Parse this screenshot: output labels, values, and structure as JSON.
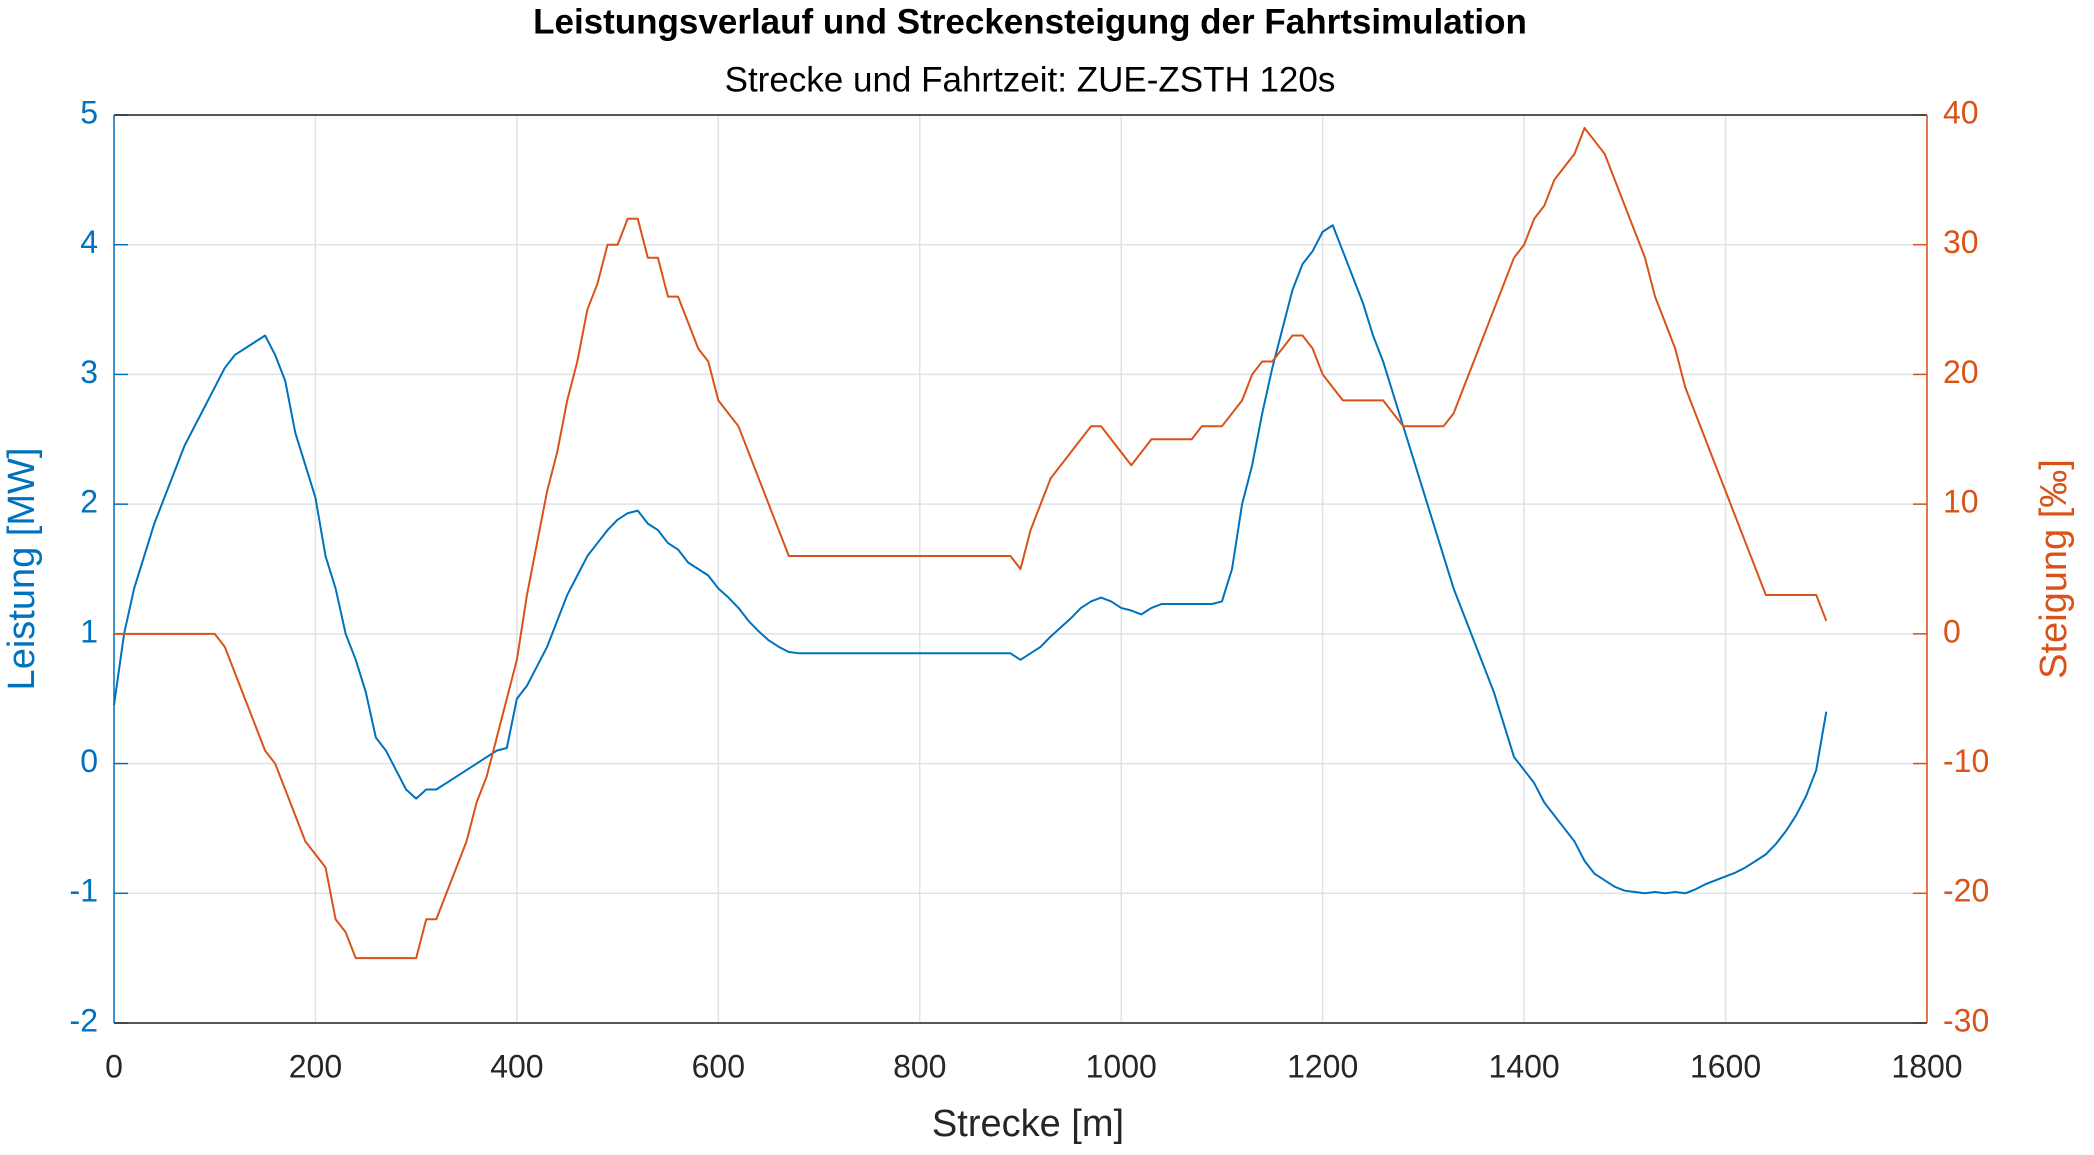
{
  "chart_data": {
    "type": "line",
    "title": "Leistungsverlauf und Streckensteigung der Fahrtsimulation",
    "subtitle": "Strecke und Fahrtzeit: ZUE-ZSTH 120s",
    "x_label": "Strecke [m]",
    "y_label": "Leistung [MW]",
    "y2_label": "Steigung [‰]",
    "x": [
      0,
      10,
      20,
      30,
      40,
      50,
      60,
      70,
      80,
      90,
      100,
      110,
      120,
      130,
      140,
      150,
      160,
      170,
      180,
      190,
      200,
      210,
      220,
      230,
      240,
      250,
      260,
      270,
      280,
      290,
      300,
      310,
      320,
      330,
      340,
      350,
      360,
      370,
      380,
      390,
      400,
      410,
      420,
      430,
      440,
      450,
      460,
      470,
      480,
      490,
      500,
      510,
      520,
      530,
      540,
      550,
      560,
      570,
      580,
      590,
      600,
      610,
      620,
      630,
      640,
      650,
      660,
      670,
      680,
      690,
      700,
      710,
      720,
      730,
      740,
      750,
      760,
      770,
      780,
      790,
      800,
      810,
      820,
      830,
      840,
      850,
      860,
      870,
      880,
      890,
      900,
      910,
      920,
      930,
      940,
      950,
      960,
      970,
      980,
      990,
      1000,
      1010,
      1020,
      1030,
      1040,
      1050,
      1060,
      1070,
      1080,
      1090,
      1100,
      1110,
      1120,
      1130,
      1140,
      1150,
      1160,
      1170,
      1180,
      1190,
      1200,
      1210,
      1220,
      1230,
      1240,
      1250,
      1260,
      1270,
      1280,
      1290,
      1300,
      1310,
      1320,
      1330,
      1340,
      1350,
      1360,
      1370,
      1380,
      1390,
      1400,
      1410,
      1420,
      1430,
      1440,
      1450,
      1460,
      1470,
      1480,
      1490,
      1500,
      1510,
      1520,
      1530,
      1540,
      1550,
      1560,
      1570,
      1580,
      1590,
      1600,
      1610,
      1620,
      1630,
      1640,
      1650,
      1660,
      1670,
      1680,
      1690,
      1700
    ],
    "series": [
      {
        "name": "Leistung",
        "color": "#0072bd",
        "axis": "y",
        "values": [
          0.45,
          1.0,
          1.35,
          1.6,
          1.85,
          2.05,
          2.25,
          2.45,
          2.6,
          2.75,
          2.9,
          3.05,
          3.15,
          3.2,
          3.25,
          3.3,
          3.15,
          2.95,
          2.55,
          2.3,
          2.05,
          1.6,
          1.35,
          1.0,
          0.8,
          0.55,
          0.2,
          0.1,
          -0.05,
          -0.2,
          -0.27,
          -0.2,
          -0.2,
          -0.15,
          -0.1,
          -0.05,
          0.0,
          0.05,
          0.1,
          0.12,
          0.5,
          0.6,
          0.75,
          0.9,
          1.1,
          1.3,
          1.45,
          1.6,
          1.7,
          1.8,
          1.88,
          1.93,
          1.95,
          1.85,
          1.8,
          1.7,
          1.65,
          1.55,
          1.5,
          1.45,
          1.35,
          1.28,
          1.2,
          1.1,
          1.02,
          0.95,
          0.9,
          0.86,
          0.85,
          0.85,
          0.85,
          0.85,
          0.85,
          0.85,
          0.85,
          0.85,
          0.85,
          0.85,
          0.85,
          0.85,
          0.85,
          0.85,
          0.85,
          0.85,
          0.85,
          0.85,
          0.85,
          0.85,
          0.85,
          0.85,
          0.8,
          0.85,
          0.9,
          0.98,
          1.05,
          1.12,
          1.2,
          1.25,
          1.28,
          1.25,
          1.2,
          1.18,
          1.15,
          1.2,
          1.23,
          1.23,
          1.23,
          1.23,
          1.23,
          1.23,
          1.25,
          1.5,
          2.0,
          2.3,
          2.7,
          3.05,
          3.35,
          3.65,
          3.85,
          3.95,
          4.1,
          4.15,
          3.95,
          3.75,
          3.55,
          3.3,
          3.1,
          2.85,
          2.6,
          2.35,
          2.1,
          1.85,
          1.6,
          1.35,
          1.15,
          0.95,
          0.75,
          0.55,
          0.3,
          0.05,
          -0.05,
          -0.15,
          -0.3,
          -0.4,
          -0.5,
          -0.6,
          -0.75,
          -0.85,
          -0.9,
          -0.95,
          -0.98,
          -0.99,
          -1.0,
          -0.99,
          -1.0,
          -0.99,
          -1.0,
          -0.97,
          -0.93,
          -0.9,
          -0.87,
          -0.84,
          -0.8,
          -0.75,
          -0.7,
          -0.62,
          -0.52,
          -0.4,
          -0.25,
          -0.05,
          0.4
        ]
      },
      {
        "name": "Steigung",
        "color": "#d95319",
        "axis": "y2",
        "values": [
          0,
          0,
          0,
          0,
          0,
          0,
          0,
          0,
          0,
          0,
          0,
          -1,
          -3,
          -5,
          -7,
          -9,
          -10,
          -12,
          -14,
          -16,
          -17,
          -18,
          -22,
          -23,
          -25,
          -25,
          -25,
          -25,
          -25,
          -25,
          -25,
          -22,
          -22,
          -20,
          -18,
          -16,
          -13,
          -11,
          -8,
          -5,
          -2,
          3,
          7,
          11,
          14,
          18,
          21,
          25,
          27,
          30,
          30,
          32,
          32,
          29,
          29,
          26,
          26,
          24,
          22,
          21,
          18,
          17,
          16,
          14,
          12,
          10,
          8,
          6,
          6,
          6,
          6,
          6,
          6,
          6,
          6,
          6,
          6,
          6,
          6,
          6,
          6,
          6,
          6,
          6,
          6,
          6,
          6,
          6,
          6,
          6,
          5,
          8,
          10,
          12,
          13,
          14,
          15,
          16,
          16,
          15,
          14,
          13,
          14,
          15,
          15,
          15,
          15,
          15,
          16,
          16,
          16,
          17,
          18,
          20,
          21,
          21,
          22,
          23,
          23,
          22,
          20,
          19,
          18,
          18,
          18,
          18,
          18,
          17,
          16,
          16,
          16,
          16,
          16,
          17,
          19,
          21,
          23,
          25,
          27,
          29,
          30,
          32,
          33,
          35,
          36,
          37,
          39,
          38,
          37,
          35,
          33,
          31,
          29,
          26,
          24,
          22,
          19,
          17,
          15,
          13,
          11,
          9,
          7,
          5,
          3,
          3,
          3,
          3,
          3,
          3,
          1
        ]
      }
    ],
    "xlim": [
      0,
      1800
    ],
    "xticks": [
      0,
      200,
      400,
      600,
      800,
      1000,
      1200,
      1400,
      1600,
      1800
    ],
    "ylim": [
      -2,
      5
    ],
    "yticks": [
      -2,
      -1,
      0,
      1,
      2,
      3,
      4,
      5
    ],
    "y2lim": [
      -30,
      40
    ],
    "y2ticks": [
      -30,
      -20,
      -10,
      0,
      10,
      20,
      30,
      40
    ],
    "grid": true
  }
}
